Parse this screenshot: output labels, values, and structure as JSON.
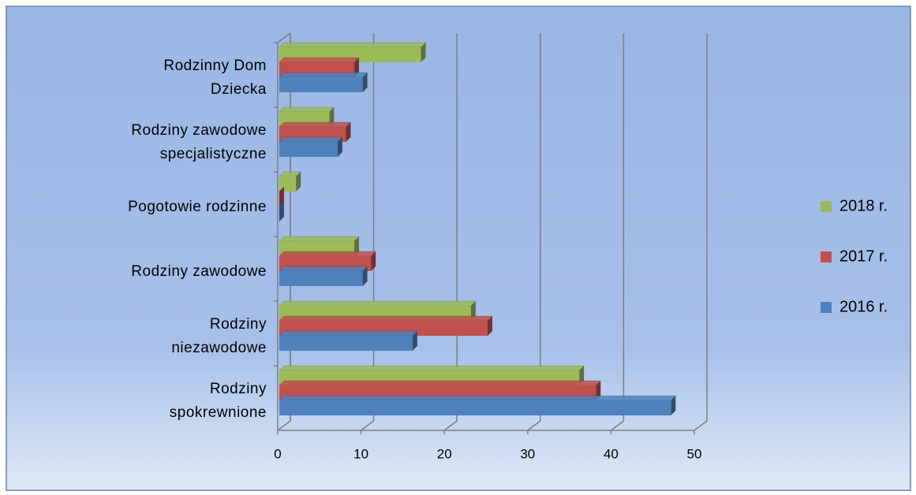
{
  "chart_data": {
    "type": "bar",
    "orientation": "horizontal",
    "categories": [
      "Rodzinny Dom Dziecka",
      "Rodziny zawodowe specjalistyczne",
      "Pogotowie rodzinne",
      "Rodziny zawodowe",
      "Rodziny niezawodowe",
      "Rodziny spokrewnione"
    ],
    "series": [
      {
        "name": "2018 r.",
        "color": "#9bbb59",
        "values": [
          17,
          6,
          2,
          9,
          23,
          36
        ]
      },
      {
        "name": "2017 r.",
        "color": "#c0504d",
        "values": [
          9,
          8,
          0,
          11,
          25,
          38
        ]
      },
      {
        "name": "2016 r.",
        "color": "#4f81bd",
        "values": [
          10,
          7,
          0,
          10,
          16,
          47
        ]
      }
    ],
    "xlim": [
      0,
      50
    ],
    "xticks": [
      0,
      10,
      20,
      30,
      40,
      50
    ],
    "grid": true,
    "legend": "right"
  }
}
